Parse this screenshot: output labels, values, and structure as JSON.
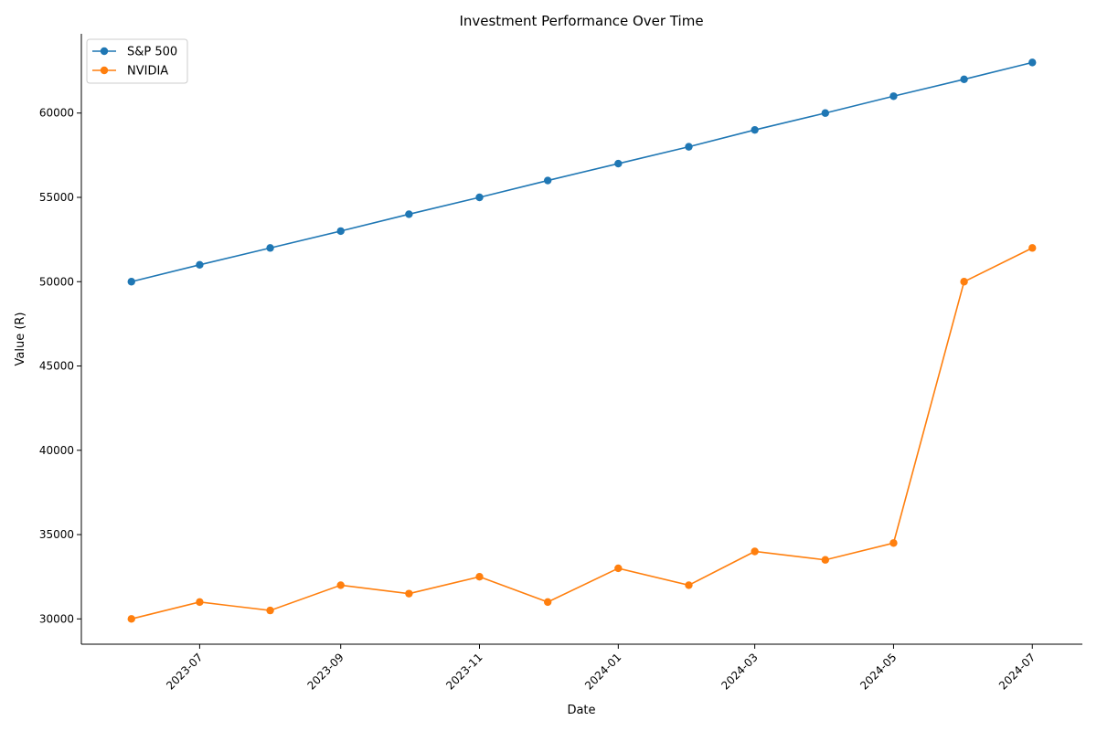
{
  "chart_data": {
    "type": "line",
    "title": "Investment Performance Over Time",
    "xlabel": "Date",
    "ylabel": "Value (R)",
    "x": [
      "2023-06-01",
      "2023-07-01",
      "2023-08-01",
      "2023-09-01",
      "2023-10-01",
      "2023-11-01",
      "2023-12-01",
      "2024-01-01",
      "2024-02-01",
      "2024-03-01",
      "2024-04-01",
      "2024-05-01",
      "2024-06-01",
      "2024-07-01"
    ],
    "x_ticks": [
      "2023-07",
      "2023-09",
      "2023-11",
      "2024-01",
      "2024-03",
      "2024-05",
      "2024-07"
    ],
    "y_ticks": [
      30000,
      35000,
      40000,
      45000,
      50000,
      55000,
      60000
    ],
    "ylim": [
      28500,
      64700
    ],
    "xlim": [
      "2023-05-10",
      "2024-07-23"
    ],
    "grid": false,
    "legend_position": "top-left",
    "series": [
      {
        "name": "S&P 500",
        "color": "#1f77b4",
        "values": [
          50000,
          51000,
          52000,
          53000,
          54000,
          55000,
          56000,
          57000,
          58000,
          59000,
          60000,
          61000,
          62000,
          63000
        ]
      },
      {
        "name": "NVIDIA",
        "color": "#ff7f0e",
        "values": [
          30000,
          31000,
          30500,
          32000,
          31500,
          32500,
          31000,
          33000,
          32000,
          34000,
          33500,
          34500,
          50000,
          52000
        ]
      }
    ]
  }
}
